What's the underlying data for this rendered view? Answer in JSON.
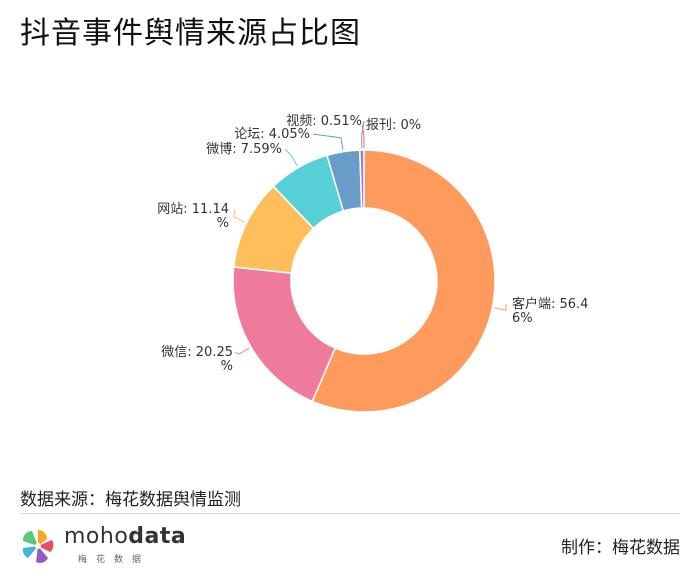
{
  "header": {
    "title": "抖音事件舆情来源占比图"
  },
  "chart_data": {
    "type": "pie",
    "title": "抖音事件舆情来源占比图",
    "categories": [
      "客户端",
      "微信",
      "网站",
      "微博",
      "论坛",
      "视频",
      "报刊"
    ],
    "values": [
      56.46,
      20.25,
      11.14,
      7.59,
      4.05,
      0.51,
      0
    ],
    "labels": [
      [
        "客户端: 56.4",
        "6%"
      ],
      [
        "微信: 20.25",
        "%"
      ],
      [
        "网站: 11.14",
        "%"
      ],
      [
        "微博: 7.59%"
      ],
      [
        "论坛: 4.05%"
      ],
      [
        "视频: 0.51%"
      ],
      [
        "报刊: 0%"
      ]
    ],
    "colors": [
      "#fe9a5b",
      "#ee7b9c",
      "#febf5b",
      "#56d0d6",
      "#6a9cc8",
      "#a47bc6",
      "#e87060"
    ],
    "donut": true
  },
  "footer": {
    "source": "数据来源：梅花数据舆情监测",
    "maker": "制作：梅花数据",
    "logo_text_a": "moho",
    "logo_text_b": "data",
    "logo_sub": "梅花数据"
  }
}
